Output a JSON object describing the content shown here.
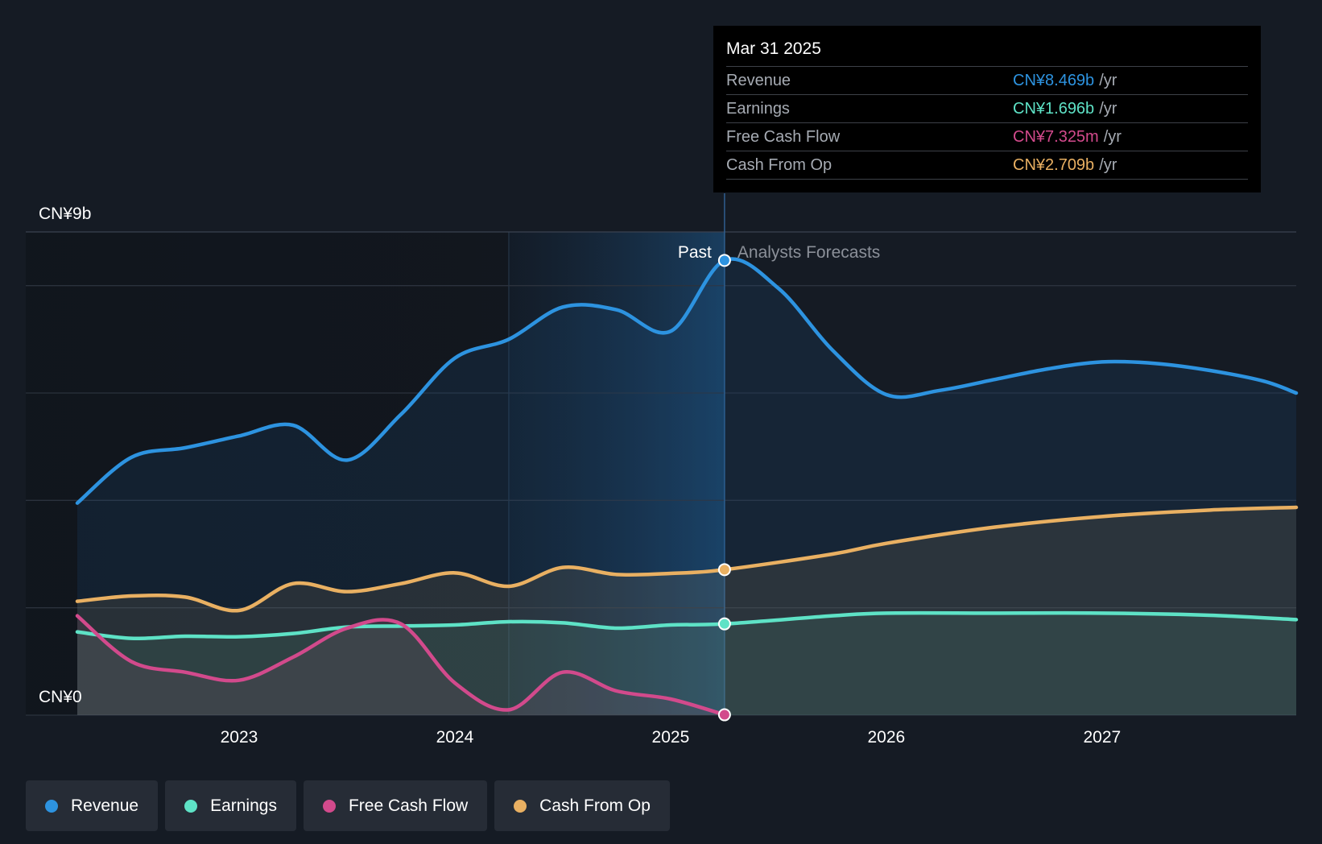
{
  "tooltip": {
    "date": "Mar 31 2025",
    "rows": [
      {
        "label": "Revenue",
        "value": "CN¥8.469b",
        "unit": "/yr",
        "color": "#2d93e0"
      },
      {
        "label": "Earnings",
        "value": "CN¥1.696b",
        "unit": "/yr",
        "color": "#5ee2c6"
      },
      {
        "label": "Free Cash Flow",
        "value": "CN¥7.325m",
        "unit": "/yr",
        "color": "#d24a8c"
      },
      {
        "label": "Cash From Op",
        "value": "CN¥2.709b",
        "unit": "/yr",
        "color": "#e9b062"
      }
    ]
  },
  "legend": [
    {
      "label": "Revenue",
      "color": "#2d93e0"
    },
    {
      "label": "Earnings",
      "color": "#5ee2c6"
    },
    {
      "label": "Free Cash Flow",
      "color": "#d24a8c"
    },
    {
      "label": "Cash From Op",
      "color": "#e9b062"
    }
  ],
  "chart_data": {
    "type": "line",
    "title": "",
    "xlabel": "",
    "ylabel": "",
    "xlim": [
      2022.25,
      2027.9
    ],
    "ylim": [
      0,
      9
    ],
    "y_tick_labels": [
      {
        "value": 9,
        "label": "CN¥9b"
      },
      {
        "value": 0,
        "label": "CN¥0"
      }
    ],
    "x_ticks": [
      2023,
      2024,
      2025,
      2026,
      2027
    ],
    "x_tick_labels": [
      "2023",
      "2024",
      "2025",
      "2026",
      "2027"
    ],
    "gridlines_y": [
      0,
      2,
      4,
      6,
      8,
      9
    ],
    "past_label": "Past",
    "forecast_label": "Analysts Forecasts",
    "divider_x": 2025.25,
    "highlight_start_x": 2024.25,
    "series": [
      {
        "name": "Revenue",
        "color": "#2d93e0",
        "x": [
          2022.25,
          2022.5,
          2022.75,
          2023.0,
          2023.25,
          2023.5,
          2023.75,
          2024.0,
          2024.25,
          2024.5,
          2024.75,
          2025.0,
          2025.25,
          2025.5,
          2025.75,
          2026.0,
          2026.25,
          2026.5,
          2026.75,
          2027.0,
          2027.25,
          2027.5,
          2027.75,
          2027.9
        ],
        "values": [
          3.95,
          4.8,
          4.98,
          5.2,
          5.4,
          4.75,
          5.6,
          6.65,
          7.0,
          7.6,
          7.55,
          7.15,
          8.47,
          7.95,
          6.8,
          5.97,
          6.05,
          6.25,
          6.45,
          6.58,
          6.55,
          6.42,
          6.22,
          6.0
        ]
      },
      {
        "name": "Earnings",
        "color": "#5ee2c6",
        "x": [
          2022.25,
          2022.5,
          2022.75,
          2023.0,
          2023.25,
          2023.5,
          2023.75,
          2024.0,
          2024.25,
          2024.5,
          2024.75,
          2025.0,
          2025.25,
          2025.75,
          2026.0,
          2026.5,
          2027.0,
          2027.5,
          2027.9
        ],
        "values": [
          1.55,
          1.43,
          1.47,
          1.46,
          1.52,
          1.64,
          1.66,
          1.68,
          1.74,
          1.72,
          1.62,
          1.68,
          1.7,
          1.85,
          1.9,
          1.9,
          1.9,
          1.86,
          1.78
        ]
      },
      {
        "name": "Free Cash Flow",
        "color": "#d24a8c",
        "x": [
          2022.25,
          2022.5,
          2022.75,
          2023.0,
          2023.25,
          2023.5,
          2023.75,
          2024.0,
          2024.25,
          2024.5,
          2024.75,
          2025.0,
          2025.25
        ],
        "values": [
          1.85,
          1.0,
          0.8,
          0.65,
          1.08,
          1.62,
          1.7,
          0.6,
          0.1,
          0.8,
          0.45,
          0.3,
          0.007
        ]
      },
      {
        "name": "Cash From Op",
        "color": "#e9b062",
        "x": [
          2022.25,
          2022.5,
          2022.75,
          2023.0,
          2023.25,
          2023.5,
          2023.75,
          2024.0,
          2024.25,
          2024.5,
          2024.75,
          2025.0,
          2025.25,
          2025.75,
          2026.0,
          2026.5,
          2027.0,
          2027.5,
          2027.9
        ],
        "values": [
          2.12,
          2.22,
          2.2,
          1.95,
          2.45,
          2.3,
          2.45,
          2.65,
          2.4,
          2.75,
          2.62,
          2.64,
          2.71,
          3.0,
          3.2,
          3.5,
          3.7,
          3.82,
          3.87
        ]
      }
    ]
  }
}
